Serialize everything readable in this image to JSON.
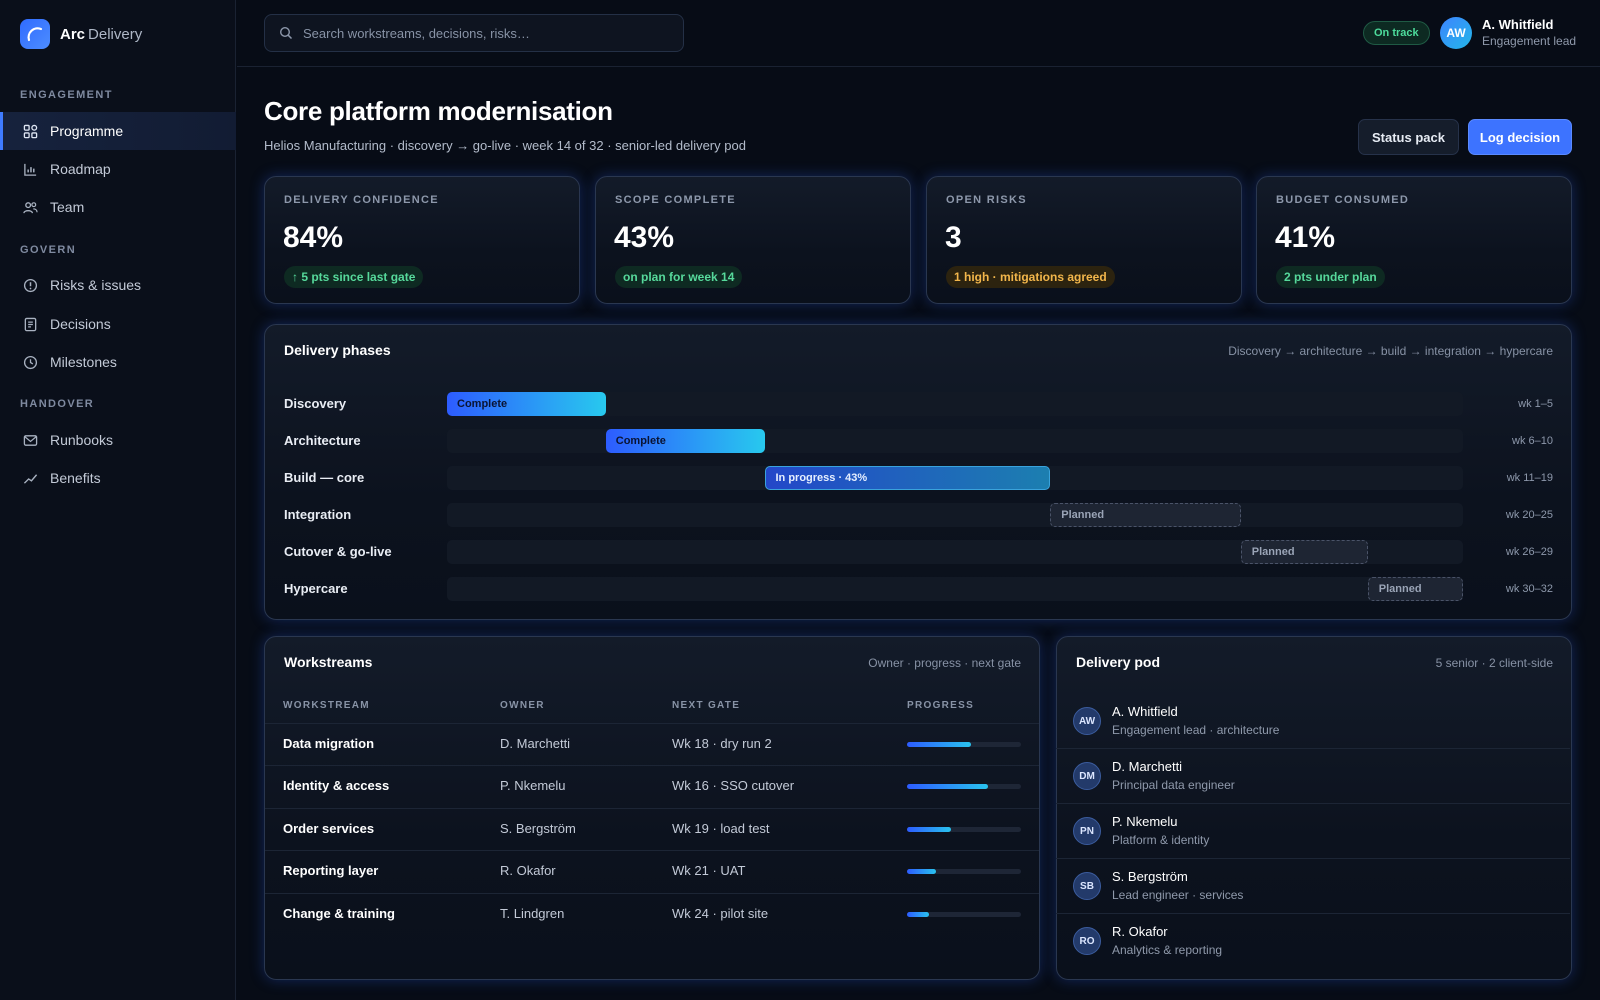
{
  "brand": {
    "name": "Arc",
    "sub": "Delivery"
  },
  "sidebar": {
    "sections": [
      {
        "title": "ENGAGEMENT",
        "items": [
          {
            "label": "Programme",
            "icon": "grid-icon",
            "active": true
          },
          {
            "label": "Roadmap",
            "icon": "bar-chart-icon"
          },
          {
            "label": "Team",
            "icon": "users-icon"
          }
        ]
      },
      {
        "title": "GOVERN",
        "items": [
          {
            "label": "Risks & issues",
            "icon": "alert-circle-icon"
          },
          {
            "label": "Decisions",
            "icon": "document-icon"
          },
          {
            "label": "Milestones",
            "icon": "clock-icon"
          }
        ]
      },
      {
        "title": "HANDOVER",
        "items": [
          {
            "label": "Runbooks",
            "icon": "mail-icon"
          },
          {
            "label": "Benefits",
            "icon": "trend-icon"
          }
        ]
      }
    ]
  },
  "topbar": {
    "search_placeholder": "Search workstreams, decisions, risks…",
    "status": "On track",
    "user": {
      "initials": "AW",
      "name": "A. Whitfield",
      "role": "Engagement lead"
    }
  },
  "page": {
    "title": "Core platform modernisation",
    "subtitle": "Helios Manufacturing · discovery → go-live · week 14 of 32 · senior-led delivery pod",
    "actions": {
      "status_pack": "Status pack",
      "log_decision": "Log decision"
    }
  },
  "kpis": [
    {
      "label": "DELIVERY CONFIDENCE",
      "value": "84%",
      "badge": "↑ 5 pts since last gate",
      "tone": "green"
    },
    {
      "label": "SCOPE COMPLETE",
      "value": "43%",
      "badge": "on plan for week 14",
      "tone": "green"
    },
    {
      "label": "OPEN RISKS",
      "value": "3",
      "badge": "1 high · mitigations agreed",
      "tone": "amber"
    },
    {
      "label": "BUDGET CONSUMED",
      "value": "41%",
      "badge": "2 pts under plan",
      "tone": "green"
    }
  ],
  "phases": {
    "title": "Delivery phases",
    "meta": "Discovery → architecture → build → integration → hypercare",
    "total_weeks": 32,
    "items": [
      {
        "name": "Discovery",
        "start": 1,
        "end": 5,
        "status": "complete",
        "bar_label": "Complete",
        "weeks": "wk 1–5"
      },
      {
        "name": "Architecture",
        "start": 6,
        "end": 10,
        "status": "complete",
        "bar_label": "Complete",
        "weeks": "wk 6–10"
      },
      {
        "name": "Build — core",
        "start": 11,
        "end": 19,
        "status": "progress",
        "bar_label": "In progress · 43%",
        "weeks": "wk 11–19"
      },
      {
        "name": "Integration",
        "start": 20,
        "end": 25,
        "status": "planned",
        "bar_label": "Planned",
        "weeks": "wk 20–25"
      },
      {
        "name": "Cutover & go-live",
        "start": 26,
        "end": 29,
        "status": "planned",
        "bar_label": "Planned",
        "weeks": "wk 26–29"
      },
      {
        "name": "Hypercare",
        "start": 30,
        "end": 32,
        "status": "planned",
        "bar_label": "Planned",
        "weeks": "wk 30–32"
      }
    ]
  },
  "workstreams": {
    "title": "Workstreams",
    "meta": "Owner · progress · next gate",
    "columns": [
      "WORKSTREAM",
      "OWNER",
      "NEXT GATE",
      "PROGRESS"
    ],
    "rows": [
      {
        "name": "Data migration",
        "owner": "D. Marchetti",
        "gate": "Wk 18 · dry run 2",
        "progress": 0.56
      },
      {
        "name": "Identity & access",
        "owner": "P. Nkemelu",
        "gate": "Wk 16 · SSO cutover",
        "progress": 0.71
      },
      {
        "name": "Order services",
        "owner": "S. Bergström",
        "gate": "Wk 19 · load test",
        "progress": 0.39
      },
      {
        "name": "Reporting layer",
        "owner": "R. Okafor",
        "gate": "Wk 21 · UAT",
        "progress": 0.25
      },
      {
        "name": "Change & training",
        "owner": "T. Lindgren",
        "gate": "Wk 24 · pilot site",
        "progress": 0.19
      }
    ]
  },
  "pod": {
    "title": "Delivery pod",
    "meta": "5 senior · 2 client-side",
    "members": [
      {
        "initials": "AW",
        "name": "A. Whitfield",
        "role": "Engagement lead · architecture"
      },
      {
        "initials": "DM",
        "name": "D. Marchetti",
        "role": "Principal data engineer"
      },
      {
        "initials": "PN",
        "name": "P. Nkemelu",
        "role": "Platform & identity"
      },
      {
        "initials": "SB",
        "name": "S. Bergström",
        "role": "Lead engineer · services"
      },
      {
        "initials": "RO",
        "name": "R. Okafor",
        "role": "Analytics & reporting"
      }
    ]
  }
}
